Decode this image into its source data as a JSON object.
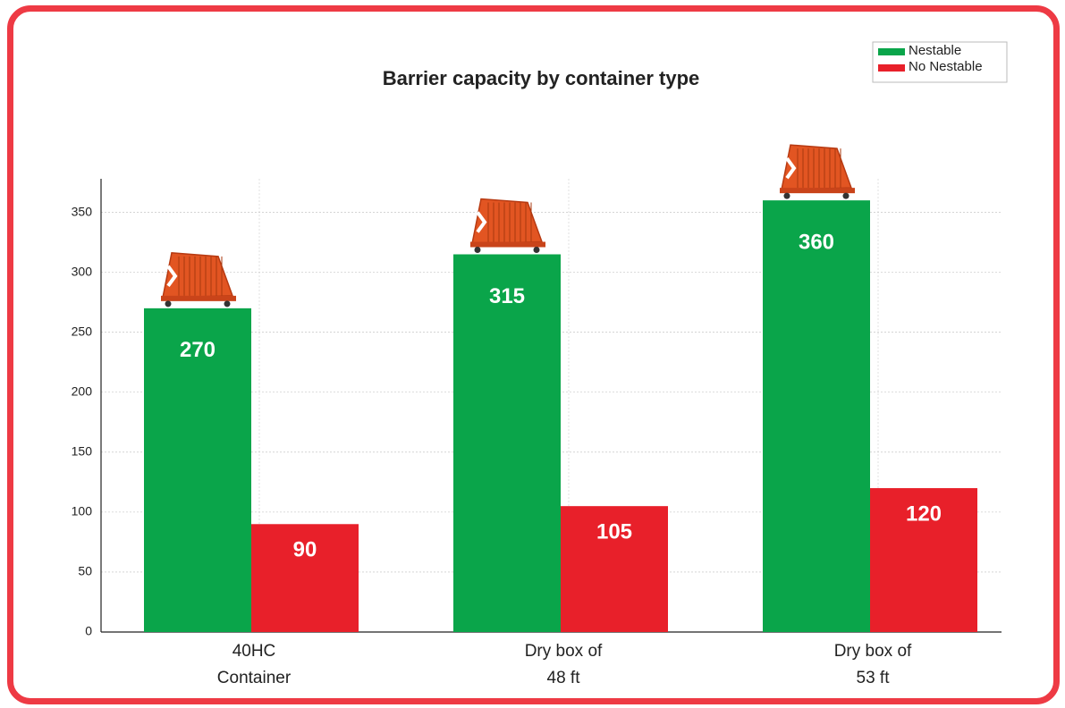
{
  "chart_data": {
    "type": "bar",
    "title": "Barrier capacity by container type",
    "categories": [
      "40HC\nContainer",
      "Dry box of\n48 ft",
      "Dry box of\n53 ft"
    ],
    "series": [
      {
        "name": "Nestable",
        "color": "#0aa54a",
        "values": [
          270,
          315,
          360
        ]
      },
      {
        "name": "No Nestable",
        "color": "#e8202a",
        "values": [
          90,
          105,
          120
        ]
      }
    ],
    "ylim": [
      0,
      378
    ],
    "yticks": [
      0,
      50,
      100,
      150,
      200,
      250,
      300,
      350
    ],
    "grid": true,
    "legend": "top-right"
  }
}
